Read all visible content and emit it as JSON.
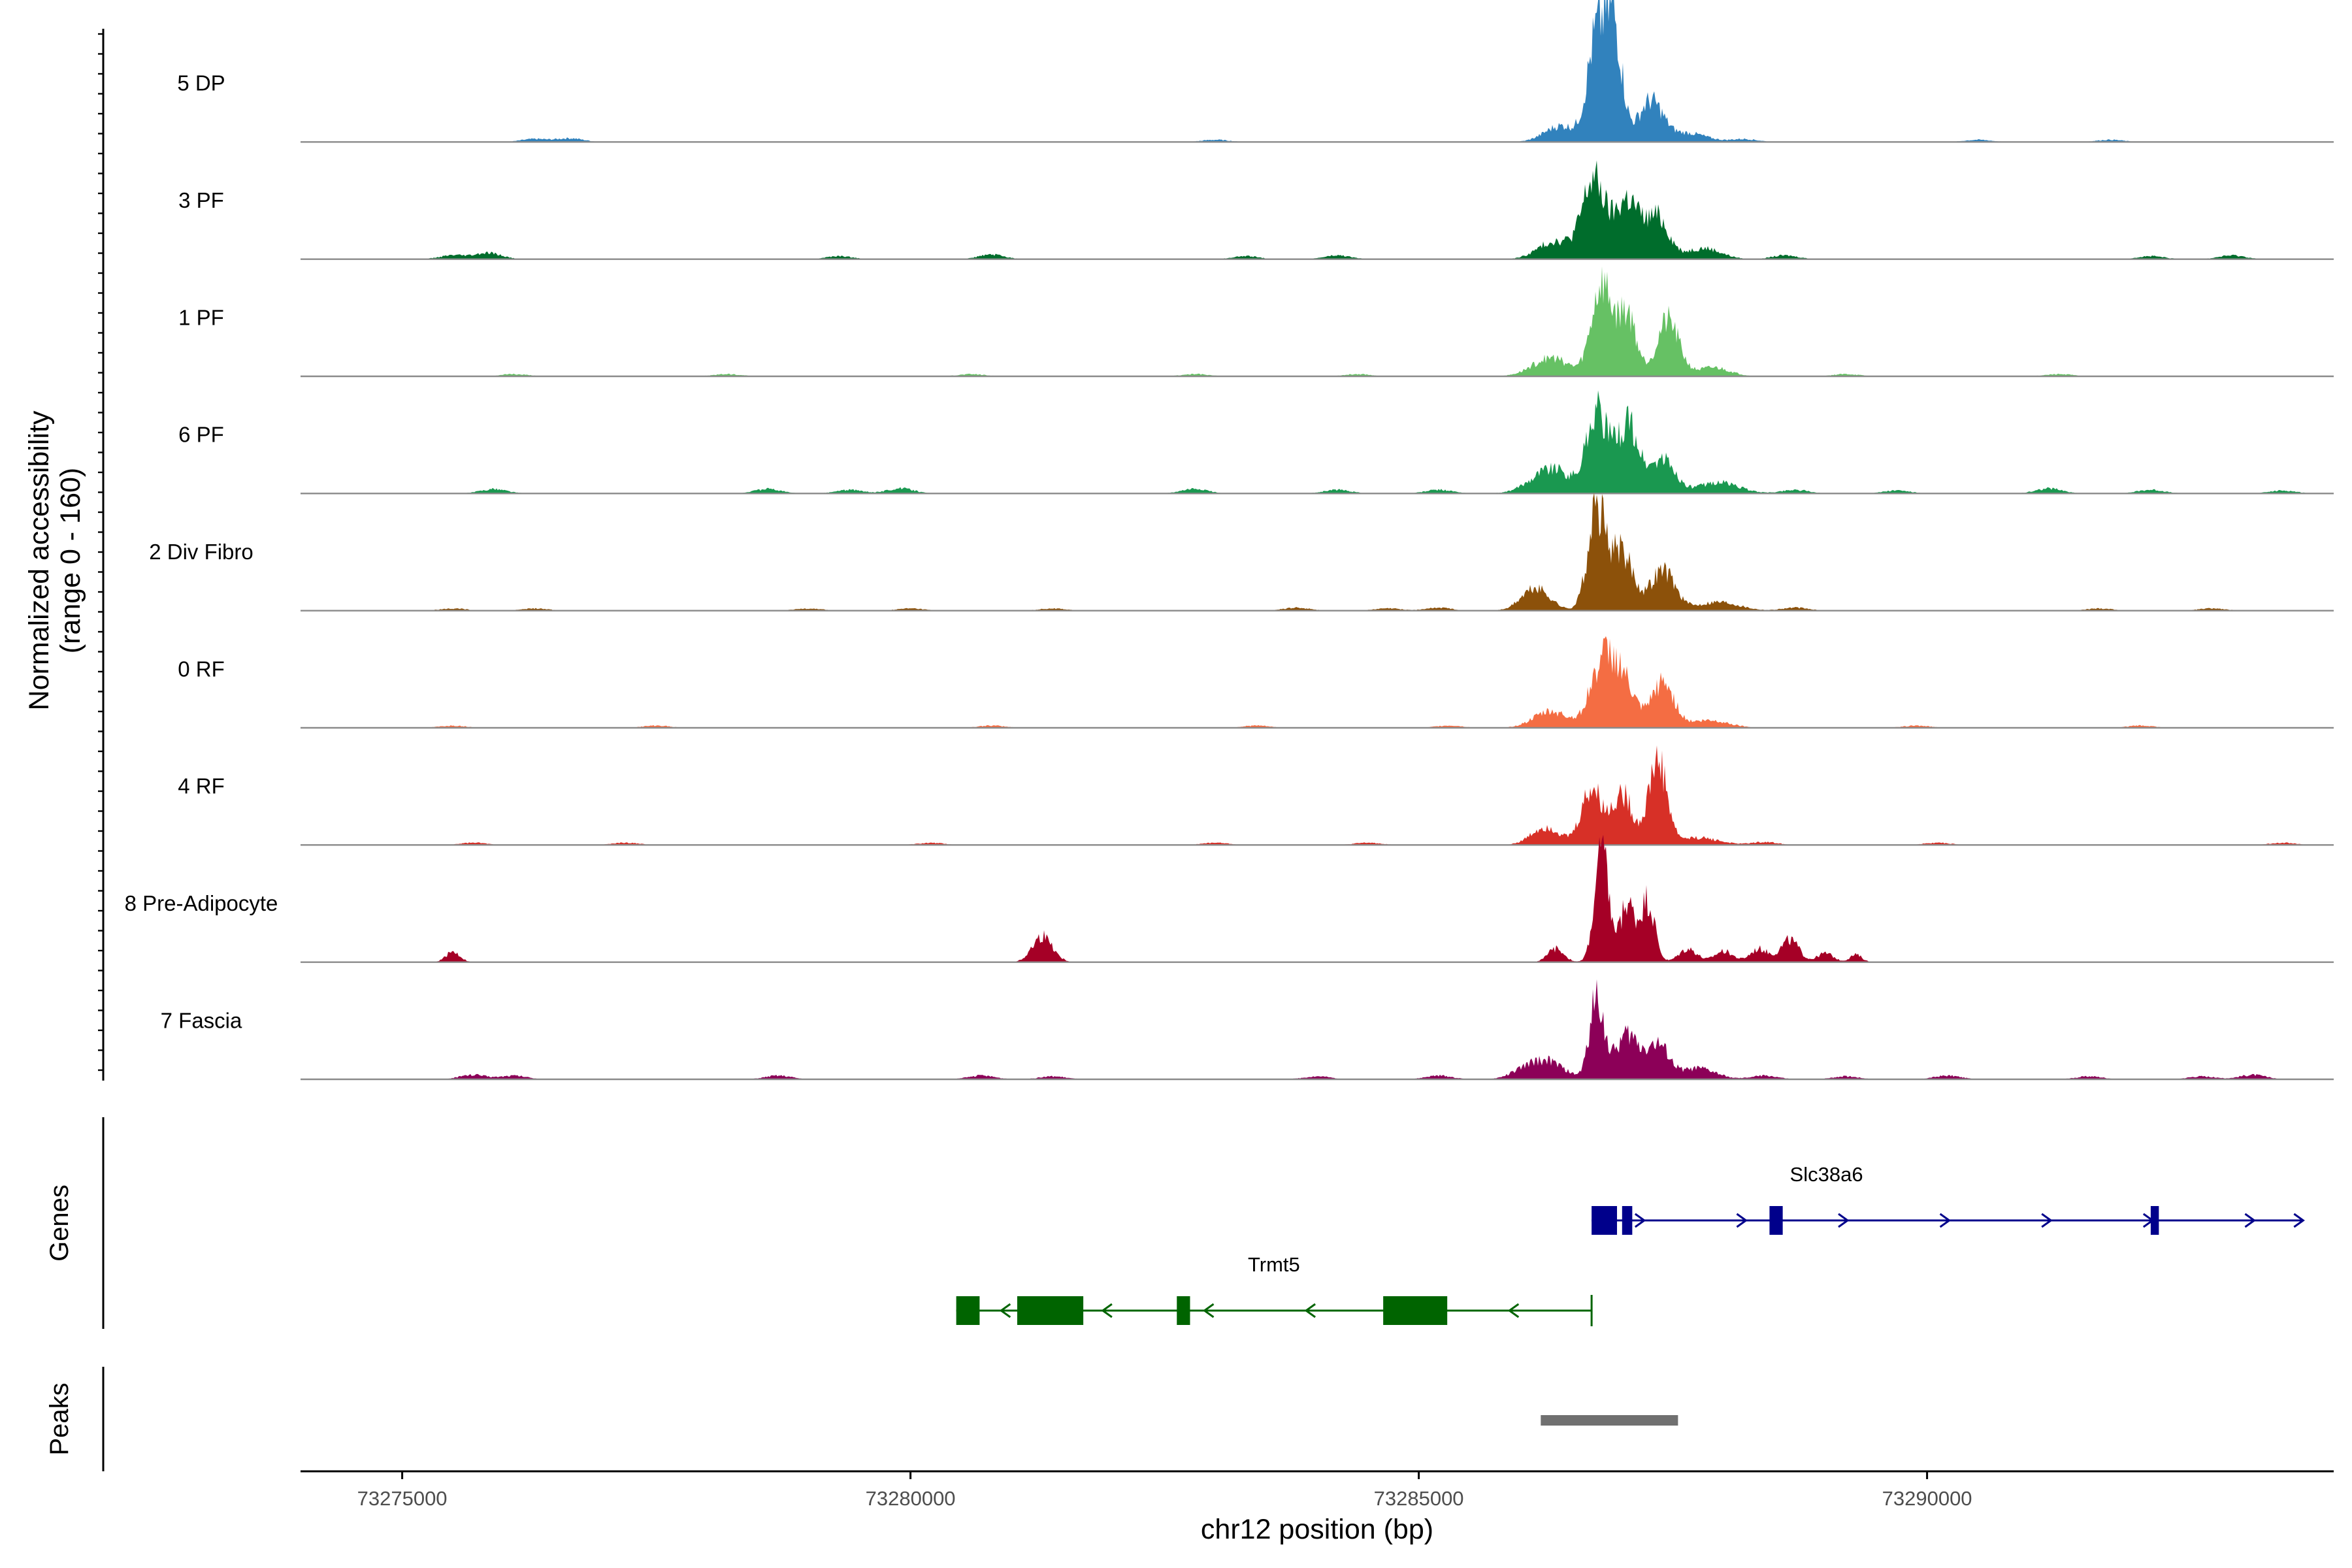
{
  "chart_data": {
    "type": "genome-coverage-track",
    "chromosome": "chr12",
    "xlim": [
      73274000,
      73294000
    ],
    "xlabel": "chr12 position (bp)",
    "x_ticks": [
      73275000,
      73280000,
      73285000,
      73290000
    ],
    "x_tick_labels": [
      "73275000",
      "73280000",
      "73285000",
      "73290000"
    ],
    "coverage_ylabel_line1": "Normalized accessibility",
    "coverage_ylabel_line2": "(range 0 - 160)",
    "coverage_range": [
      0,
      160
    ],
    "genes_label": "Genes",
    "peaks_label": "Peaks",
    "tracks": [
      {
        "name": "5 DP",
        "color": "#3182bd",
        "peaks": [
          [
            73286750,
            140,
            90
          ],
          [
            73286920,
            150,
            80
          ],
          [
            73287280,
            55,
            120
          ],
          [
            73286400,
            22,
            160
          ],
          [
            73287650,
            12,
            180
          ]
        ],
        "background": [
          [
            73276300,
            4
          ],
          [
            73276650,
            5
          ],
          [
            73283000,
            3
          ],
          [
            73288200,
            4
          ],
          [
            73290500,
            3
          ],
          [
            73291800,
            3
          ]
        ]
      },
      {
        "name": "3 PF",
        "color": "#006d2c",
        "peaks": [
          [
            73286720,
            105,
            110
          ],
          [
            73287050,
            80,
            120
          ],
          [
            73287350,
            55,
            110
          ],
          [
            73286350,
            25,
            170
          ],
          [
            73287800,
            15,
            170
          ]
        ],
        "background": [
          [
            73275500,
            5
          ],
          [
            73275850,
            8
          ],
          [
            73279300,
            4
          ],
          [
            73280800,
            6
          ],
          [
            73283300,
            4
          ],
          [
            73284200,
            5
          ],
          [
            73288600,
            5
          ],
          [
            73292200,
            4
          ],
          [
            73293000,
            5
          ]
        ]
      },
      {
        "name": "1 PF",
        "color": "#66c164",
        "peaks": [
          [
            73286800,
            125,
            100
          ],
          [
            73287050,
            85,
            90
          ],
          [
            73287450,
            75,
            110
          ],
          [
            73286300,
            25,
            180
          ],
          [
            73287900,
            12,
            160
          ]
        ],
        "background": [
          [
            73276100,
            3
          ],
          [
            73278200,
            3
          ],
          [
            73280600,
            3
          ],
          [
            73282800,
            3
          ],
          [
            73284400,
            3
          ],
          [
            73289200,
            3
          ],
          [
            73291300,
            3
          ]
        ]
      },
      {
        "name": "6 PF",
        "color": "#1a9850",
        "peaks": [
          [
            73286750,
            110,
            100
          ],
          [
            73287050,
            95,
            110
          ],
          [
            73287400,
            45,
            120
          ],
          [
            73286300,
            35,
            190
          ],
          [
            73287950,
            15,
            200
          ]
        ],
        "background": [
          [
            73275900,
            6
          ],
          [
            73278600,
            6
          ],
          [
            73279400,
            5
          ],
          [
            73279900,
            7
          ],
          [
            73282800,
            6
          ],
          [
            73284200,
            5
          ],
          [
            73285200,
            5
          ],
          [
            73288700,
            5
          ],
          [
            73289700,
            4
          ],
          [
            73291200,
            7
          ],
          [
            73292200,
            5
          ],
          [
            73293500,
            4
          ]
        ]
      },
      {
        "name": "2 Div Fibro",
        "color": "#8c510a",
        "peaks": [
          [
            73286750,
            130,
            90
          ],
          [
            73287000,
            80,
            110
          ],
          [
            73287400,
            55,
            120
          ],
          [
            73286150,
            30,
            140
          ],
          [
            73287950,
            12,
            200
          ]
        ],
        "background": [
          [
            73275500,
            3
          ],
          [
            73276300,
            3
          ],
          [
            73279000,
            3
          ],
          [
            73280000,
            3
          ],
          [
            73281400,
            3
          ],
          [
            73283800,
            4
          ],
          [
            73284700,
            3
          ],
          [
            73285200,
            4
          ],
          [
            73288700,
            4
          ],
          [
            73291700,
            3
          ],
          [
            73292800,
            3
          ]
        ]
      },
      {
        "name": "0 RF",
        "color": "#f46d43",
        "peaks": [
          [
            73286800,
            80,
            120
          ],
          [
            73287000,
            60,
            120
          ],
          [
            73287400,
            60,
            110
          ],
          [
            73286300,
            22,
            170
          ],
          [
            73287850,
            10,
            200
          ]
        ],
        "background": [
          [
            73275500,
            3
          ],
          [
            73277500,
            3
          ],
          [
            73280800,
            3
          ],
          [
            73283400,
            3
          ],
          [
            73285300,
            3
          ],
          [
            73289900,
            3
          ],
          [
            73292100,
            3
          ]
        ]
      },
      {
        "name": "4 RF",
        "color": "#d73027",
        "peaks": [
          [
            73286700,
            75,
            100
          ],
          [
            73287000,
            70,
            100
          ],
          [
            73287350,
            115,
            90
          ],
          [
            73286250,
            25,
            140
          ],
          [
            73287750,
            10,
            200
          ]
        ],
        "background": [
          [
            73275700,
            3
          ],
          [
            73277200,
            3
          ],
          [
            73280200,
            3
          ],
          [
            73283000,
            3
          ],
          [
            73284500,
            3
          ],
          [
            73288400,
            4
          ],
          [
            73290100,
            3
          ],
          [
            73293500,
            3
          ]
        ]
      },
      {
        "name": "8 Pre-Adipocyte",
        "color": "#a50026",
        "peaks": [
          [
            73275500,
            14,
            70
          ],
          [
            73281300,
            35,
            100
          ],
          [
            73286800,
            150,
            70
          ],
          [
            73287050,
            80,
            70
          ],
          [
            73287250,
            85,
            70
          ],
          [
            73286350,
            18,
            80
          ],
          [
            73287650,
            18,
            90
          ],
          [
            73288000,
            15,
            90
          ],
          [
            73288350,
            18,
            90
          ],
          [
            73288650,
            30,
            90
          ],
          [
            73289000,
            12,
            80
          ],
          [
            73289300,
            10,
            60
          ]
        ],
        "background": []
      },
      {
        "name": "7 Fascia",
        "color": "#8c0058",
        "peaks": [
          [
            73286750,
            110,
            70
          ],
          [
            73287050,
            60,
            120
          ],
          [
            73287350,
            45,
            110
          ],
          [
            73286250,
            25,
            170
          ],
          [
            73287750,
            15,
            170
          ]
        ],
        "background": [
          [
            73275700,
            6
          ],
          [
            73276100,
            5
          ],
          [
            73278700,
            5
          ],
          [
            73280700,
            5
          ],
          [
            73281400,
            4
          ],
          [
            73284000,
            4
          ],
          [
            73285200,
            5
          ],
          [
            73286000,
            7
          ],
          [
            73288400,
            5
          ],
          [
            73289200,
            4
          ],
          [
            73290200,
            5
          ],
          [
            73291600,
            4
          ],
          [
            73292700,
            4
          ],
          [
            73293200,
            6
          ]
        ]
      }
    ],
    "genes": [
      {
        "name": "Slc38a6",
        "strand": "+",
        "color": "#00008b",
        "start": 73286700,
        "end": 73293700,
        "exons": [
          [
            73286700,
            73286950
          ],
          [
            73287000,
            73287100
          ],
          [
            73288450,
            73288580
          ],
          [
            73292200,
            73292280
          ]
        ]
      },
      {
        "name": "Trmt5",
        "strand": "-",
        "color": "#006400",
        "start": 73280450,
        "end": 73286700,
        "exons": [
          [
            73280450,
            73280680
          ],
          [
            73281050,
            73281700
          ],
          [
            73282620,
            73282750
          ],
          [
            73284650,
            73285280
          ]
        ]
      }
    ],
    "peaks_track": [
      [
        73286200,
        73287550
      ]
    ]
  }
}
